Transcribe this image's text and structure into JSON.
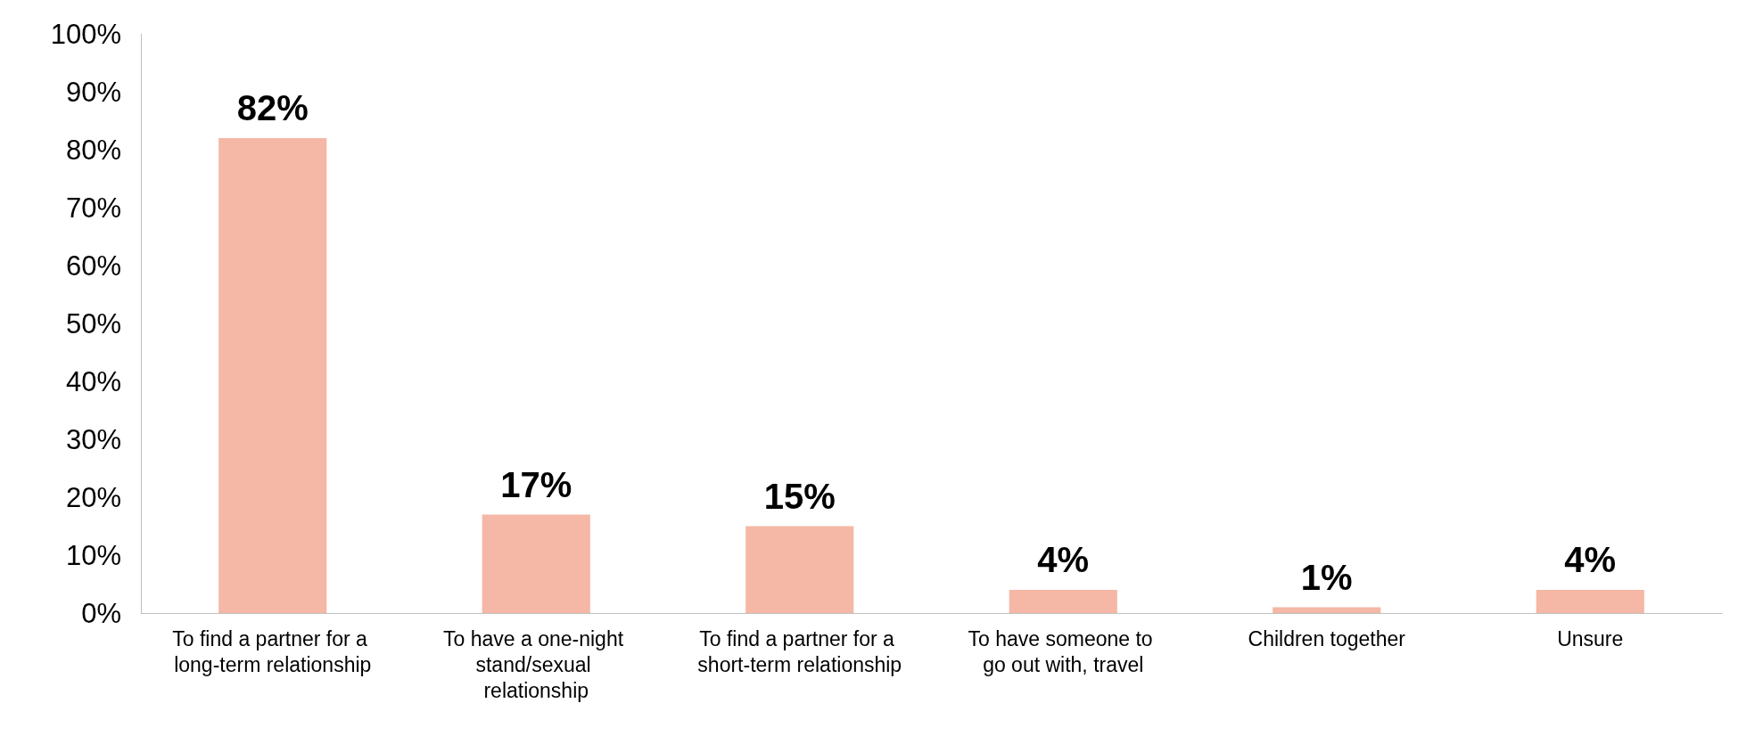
{
  "chart_data": {
    "type": "bar",
    "categories": [
      "To find a partner for a long-term relationship",
      "To have a one-night stand/sexual relationship",
      "To find a partner for a short-term relationship",
      "To have someone to go out with, travel",
      "Children together",
      "Unsure"
    ],
    "values": [
      82,
      17,
      15,
      4,
      1,
      4
    ],
    "value_labels": [
      "82%",
      "17%",
      "15%",
      "4%",
      "1%",
      "4%"
    ],
    "color": "#f5b7a6",
    "ylim": [
      0,
      100
    ],
    "yticks": [
      {
        "value": 0,
        "label": "0%"
      },
      {
        "value": 10,
        "label": "10%"
      },
      {
        "value": 20,
        "label": "20%"
      },
      {
        "value": 30,
        "label": "30%"
      },
      {
        "value": 40,
        "label": "40%"
      },
      {
        "value": 50,
        "label": "50%"
      },
      {
        "value": 60,
        "label": "60%"
      },
      {
        "value": 70,
        "label": "70%"
      },
      {
        "value": 80,
        "label": "80%"
      },
      {
        "value": 90,
        "label": "90%"
      },
      {
        "value": 100,
        "label": "100%"
      }
    ],
    "grid": false
  }
}
